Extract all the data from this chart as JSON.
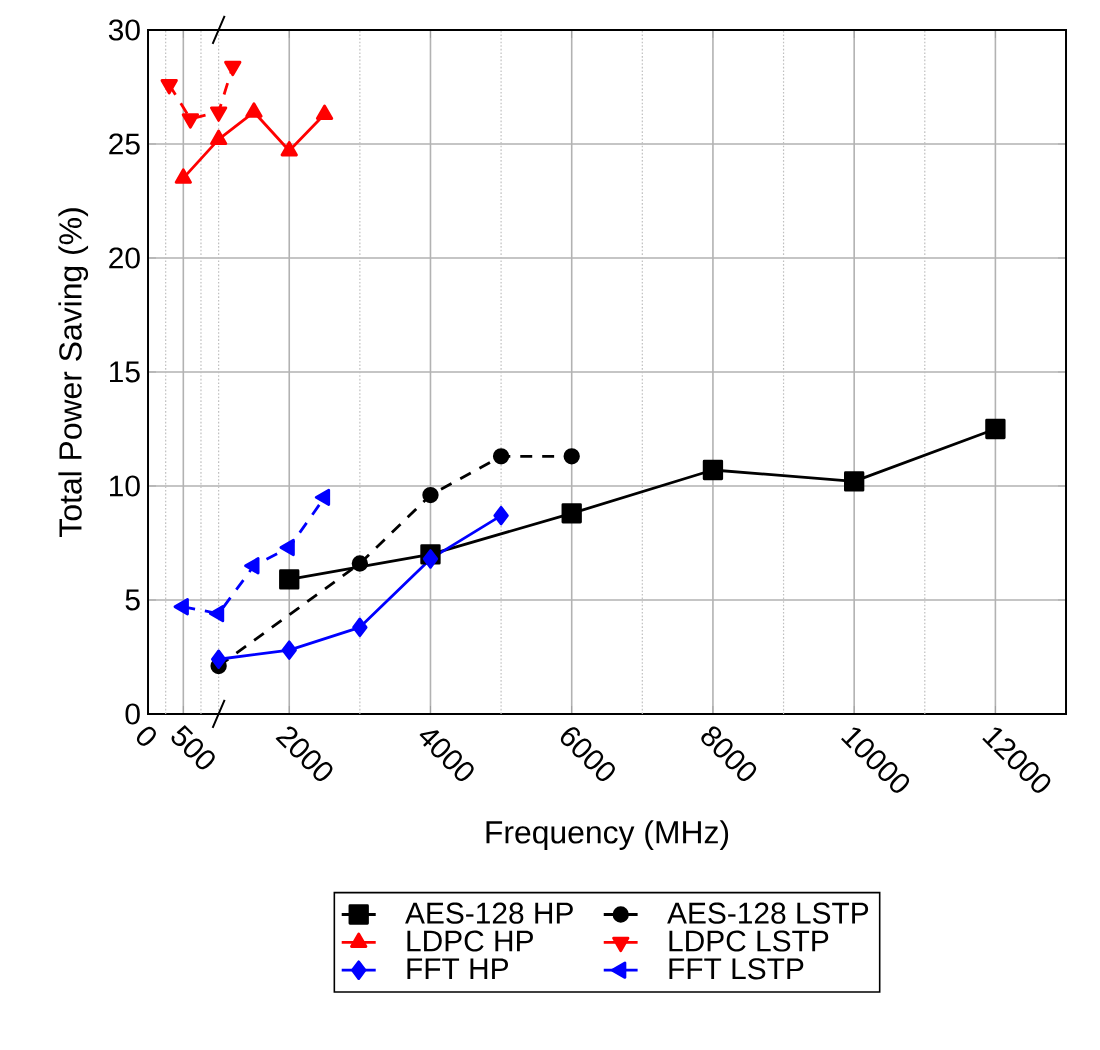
{
  "chart_data": {
    "type": "line",
    "xlabel": "Frequency (MHz)",
    "ylabel": "Total Power Saving (%)",
    "xlim": [
      0,
      13000
    ],
    "ylim": [
      0,
      30
    ],
    "xticks": [
      0,
      {
        "value": 250,
        "label": null
      },
      500,
      {
        "value": 750,
        "label": null
      },
      {
        "value": 1000,
        "label": null
      },
      2000,
      {
        "value": 3000,
        "label": null
      },
      4000,
      {
        "value": 5000,
        "label": null
      },
      6000,
      {
        "value": 7000,
        "label": null
      },
      8000,
      {
        "value": 9000,
        "label": null
      },
      10000,
      {
        "value": 11000,
        "label": null
      },
      12000
    ],
    "yticks": [
      0,
      5,
      10,
      15,
      20,
      25,
      30
    ],
    "grid": true,
    "legend": "bottom",
    "series": [
      {
        "name": "AES-128 HP",
        "color": "#000000",
        "marker": "square",
        "line_style": "solid",
        "x": [
          2000,
          4000,
          6000,
          8000,
          10000,
          12000
        ],
        "values": [
          5.9,
          7.0,
          8.8,
          10.7,
          10.2,
          12.5
        ]
      },
      {
        "name": "AES-128 LSTP",
        "color": "#000000",
        "marker": "circle",
        "line_style": "dashed",
        "x": [
          1000,
          3000,
          4000,
          5000,
          6000
        ],
        "values": [
          2.1,
          6.6,
          9.6,
          11.3,
          11.3
        ]
      },
      {
        "name": "LDPC HP",
        "color": "#ff0000",
        "marker": "triangle",
        "line_style": "solid",
        "x": [
          500,
          1000,
          1500,
          2000,
          2500
        ],
        "values": [
          23.5,
          25.2,
          26.4,
          24.7,
          26.3
        ]
      },
      {
        "name": "LDPC LSTP",
        "color": "#ff0000",
        "marker": "triangle down",
        "line_style": "dashed",
        "x": [
          300,
          600,
          1000,
          1200
        ],
        "values": [
          27.6,
          26.1,
          26.4,
          28.4
        ]
      },
      {
        "name": "FFT HP",
        "color": "#0000ff",
        "marker": "diamond",
        "line_style": "solid",
        "x": [
          1000,
          2000,
          3000,
          4000,
          5000
        ],
        "values": [
          2.4,
          2.8,
          3.8,
          6.8,
          8.7
        ]
      },
      {
        "name": "FFT LSTP",
        "color": "#0000ff",
        "marker": "triangle left",
        "line_style": "dashed",
        "x": [
          500,
          1000,
          1500,
          2000,
          2500
        ],
        "values": [
          4.7,
          4.4,
          6.5,
          7.3,
          9.5
        ]
      }
    ]
  }
}
